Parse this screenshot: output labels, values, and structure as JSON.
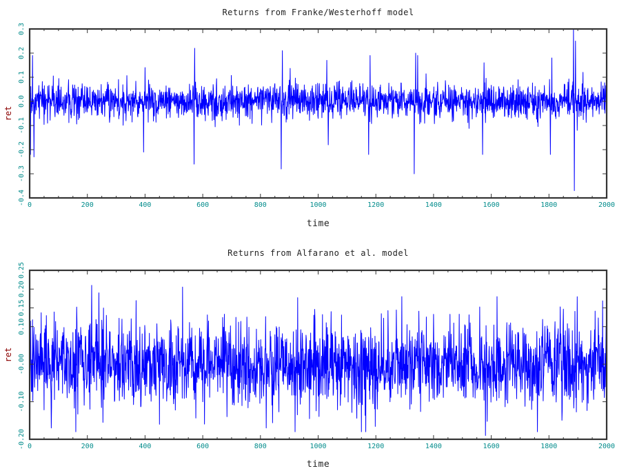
{
  "colors": {
    "series": "#0000ff",
    "tick_label": "#008b8b",
    "axis_label": "#8b0000",
    "frame": "#333333"
  },
  "chart_data": [
    {
      "type": "line",
      "title": "Returns from Franke/Westerhoff model",
      "xlabel": "time",
      "ylabel": "ret",
      "xlim": [
        0,
        2000
      ],
      "ylim": [
        -0.4,
        0.3
      ],
      "xticks": [
        "0",
        "200",
        "400",
        "600",
        "800",
        "1000",
        "1200",
        "1400",
        "1600",
        "1800",
        "2000"
      ],
      "yticks": [
        "-0.4",
        "-0.3",
        "-0.2",
        "-0.1",
        "0.0",
        "0.1",
        "0.2",
        "0.3"
      ],
      "grid": false,
      "series": [
        {
          "base_std": 0.035,
          "x": [
            3,
            10,
            15,
            570,
            572,
            575,
            395,
            400,
            872,
            876,
            1030,
            1035,
            1175,
            1180,
            1333,
            1338,
            1345,
            1570,
            1575,
            1805,
            1810,
            1885,
            1888,
            1892,
            1898
          ],
          "y": [
            -0.22,
            0.19,
            -0.23,
            -0.26,
            0.22,
            0.08,
            -0.21,
            0.14,
            -0.28,
            0.21,
            0.17,
            -0.18,
            -0.22,
            0.19,
            -0.3,
            0.2,
            0.19,
            -0.22,
            0.16,
            -0.22,
            0.18,
            0.3,
            -0.37,
            0.25,
            -0.12
          ]
        }
      ]
    },
    {
      "type": "line",
      "title": "Returns from Alfarano et al. model",
      "xlabel": "time",
      "ylabel": "ret",
      "xlim": [
        0,
        2000
      ],
      "ylim": [
        -0.2,
        0.25
      ],
      "xticks": [
        "0",
        "200",
        "400",
        "600",
        "800",
        "1000",
        "1200",
        "1400",
        "1600",
        "1800",
        "2000"
      ],
      "yticks": [
        "-0.20",
        "-0.10",
        "-0.00",
        "0.10",
        "0.15",
        "0.20",
        "0.25"
      ],
      "ytick_values": [
        -0.2,
        -0.1,
        0.0,
        0.1,
        0.15,
        0.2,
        0.25
      ],
      "grid": false,
      "series": [
        {
          "base_std": 0.055,
          "x": [
            75,
            160,
            215,
            240,
            450,
            820,
            1150,
            1290,
            1580,
            1620,
            1760
          ],
          "y": [
            -0.17,
            -0.18,
            0.21,
            0.19,
            -0.16,
            -0.17,
            -0.18,
            0.18,
            -0.19,
            0.18,
            -0.18
          ]
        }
      ]
    }
  ]
}
